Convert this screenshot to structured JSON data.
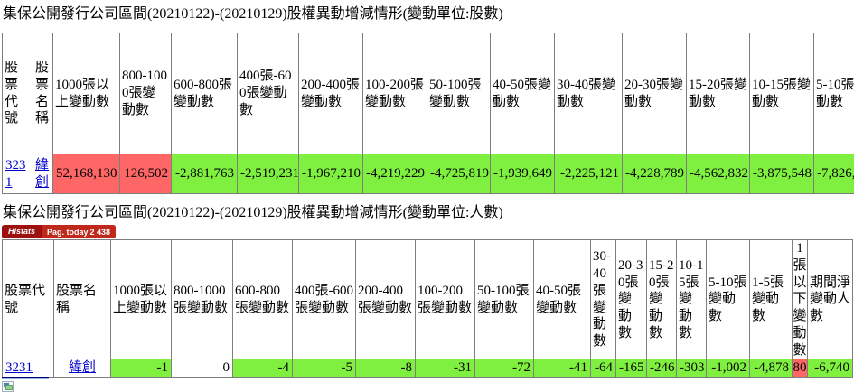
{
  "page": {
    "title_shares": "集保公開發行公司區間(20210122)-(20210129)股權異動增減情形(變動單位:股數)",
    "title_holders": "集保公開發行公司區間(20210122)-(20210129)股權異動增減情形(變動單位:人數)"
  },
  "histats": {
    "brand": "Histats",
    "label": "Pag. today",
    "count": "2 438"
  },
  "colors": {
    "positive_bg": "#ff6666",
    "negative_bg": "#80f040",
    "link_blue": "#0000cc",
    "histats_dark_red": "#9c1010",
    "histats_red": "#c0281c"
  },
  "table_shares": {
    "headers": [
      "股票代號",
      "股票名稱",
      "1000張以上變動數",
      "800-1000張變動數",
      "600-800張變動數",
      "400張-600張變動數",
      "200-400張變動數",
      "100-200張變動數",
      "50-100張變動數",
      "40-50張變動數",
      "30-40張變動數",
      "20-30張變動數",
      "15-20張變動數",
      "10-15張變動數",
      "5-10張變動數"
    ],
    "row": {
      "code": "3231",
      "name": "緯創",
      "values": [
        {
          "text": "52,168,130",
          "bg": "pos"
        },
        {
          "text": "126,502",
          "bg": "pos"
        },
        {
          "text": "-2,881,763",
          "bg": "neg"
        },
        {
          "text": "-2,519,231",
          "bg": "neg"
        },
        {
          "text": "-1,967,210",
          "bg": "neg"
        },
        {
          "text": "-4,219,229",
          "bg": "neg"
        },
        {
          "text": "-4,725,819",
          "bg": "neg"
        },
        {
          "text": "-1,939,649",
          "bg": "neg"
        },
        {
          "text": "-2,225,121",
          "bg": "neg"
        },
        {
          "text": "-4,228,789",
          "bg": "neg"
        },
        {
          "text": "-4,562,832",
          "bg": "neg"
        },
        {
          "text": "-3,875,548",
          "bg": "neg"
        },
        {
          "text": "-7,826,",
          "bg": "neg"
        }
      ]
    }
  },
  "table_holders": {
    "headers": [
      "股票代號",
      "股票名稱",
      "1000張以上變動數",
      "800-1000張變動數",
      "600-800張變動數",
      "400張-600張變動數",
      "200-400張變動數",
      "100-200張變動數",
      "50-100張變動數",
      "40-50張變動數",
      "30-40張變動數",
      "20-30張變動數",
      "15-20張變動數",
      "10-15張變動數",
      "5-10張變動數",
      "1-5張變動數",
      "1張以下變動數",
      "期間淨變動人數"
    ],
    "row": {
      "code": "3231",
      "name": "緯創",
      "values": [
        {
          "text": "-1",
          "bg": "neg"
        },
        {
          "text": "0",
          "bg": "none"
        },
        {
          "text": "-4",
          "bg": "neg"
        },
        {
          "text": "-5",
          "bg": "neg"
        },
        {
          "text": "-8",
          "bg": "neg"
        },
        {
          "text": "-31",
          "bg": "neg"
        },
        {
          "text": "-72",
          "bg": "neg"
        },
        {
          "text": "-41",
          "bg": "neg"
        },
        {
          "text": "-64",
          "bg": "neg"
        },
        {
          "text": "-165",
          "bg": "neg"
        },
        {
          "text": "-246",
          "bg": "neg"
        },
        {
          "text": "-303",
          "bg": "neg"
        },
        {
          "text": "-1,002",
          "bg": "neg"
        },
        {
          "text": "-4,878",
          "bg": "neg"
        },
        {
          "text": "80",
          "bg": "pos"
        },
        {
          "text": "-6,740",
          "bg": "neg"
        }
      ]
    }
  }
}
